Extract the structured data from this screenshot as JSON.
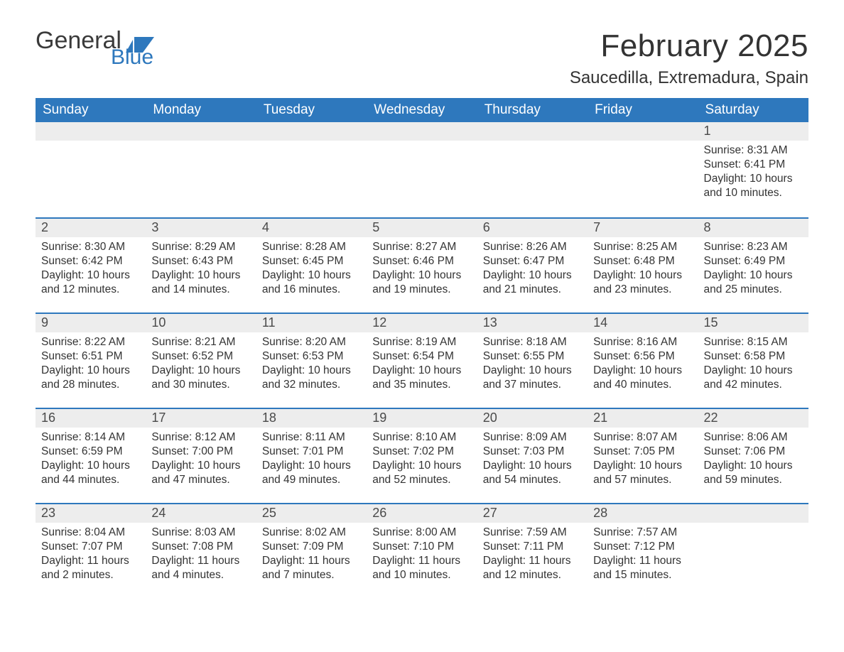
{
  "brand": {
    "word1": "General",
    "word2": "Blue",
    "accent_color": "#2e78bd",
    "text_color": "#3a3a3a"
  },
  "header": {
    "month_title": "February 2025",
    "location": "Saucedilla, Extremadura, Spain"
  },
  "calendar": {
    "header_bg": "#2e78bd",
    "header_text_color": "#ffffff",
    "daynum_bg": "#ededed",
    "row_divider_color": "#2e78bd",
    "days_of_week": [
      "Sunday",
      "Monday",
      "Tuesday",
      "Wednesday",
      "Thursday",
      "Friday",
      "Saturday"
    ],
    "weeks": [
      [
        null,
        null,
        null,
        null,
        null,
        null,
        {
          "n": "1",
          "sunrise": "Sunrise: 8:31 AM",
          "sunset": "Sunset: 6:41 PM",
          "day1": "Daylight: 10 hours",
          "day2": "and 10 minutes."
        }
      ],
      [
        {
          "n": "2",
          "sunrise": "Sunrise: 8:30 AM",
          "sunset": "Sunset: 6:42 PM",
          "day1": "Daylight: 10 hours",
          "day2": "and 12 minutes."
        },
        {
          "n": "3",
          "sunrise": "Sunrise: 8:29 AM",
          "sunset": "Sunset: 6:43 PM",
          "day1": "Daylight: 10 hours",
          "day2": "and 14 minutes."
        },
        {
          "n": "4",
          "sunrise": "Sunrise: 8:28 AM",
          "sunset": "Sunset: 6:45 PM",
          "day1": "Daylight: 10 hours",
          "day2": "and 16 minutes."
        },
        {
          "n": "5",
          "sunrise": "Sunrise: 8:27 AM",
          "sunset": "Sunset: 6:46 PM",
          "day1": "Daylight: 10 hours",
          "day2": "and 19 minutes."
        },
        {
          "n": "6",
          "sunrise": "Sunrise: 8:26 AM",
          "sunset": "Sunset: 6:47 PM",
          "day1": "Daylight: 10 hours",
          "day2": "and 21 minutes."
        },
        {
          "n": "7",
          "sunrise": "Sunrise: 8:25 AM",
          "sunset": "Sunset: 6:48 PM",
          "day1": "Daylight: 10 hours",
          "day2": "and 23 minutes."
        },
        {
          "n": "8",
          "sunrise": "Sunrise: 8:23 AM",
          "sunset": "Sunset: 6:49 PM",
          "day1": "Daylight: 10 hours",
          "day2": "and 25 minutes."
        }
      ],
      [
        {
          "n": "9",
          "sunrise": "Sunrise: 8:22 AM",
          "sunset": "Sunset: 6:51 PM",
          "day1": "Daylight: 10 hours",
          "day2": "and 28 minutes."
        },
        {
          "n": "10",
          "sunrise": "Sunrise: 8:21 AM",
          "sunset": "Sunset: 6:52 PM",
          "day1": "Daylight: 10 hours",
          "day2": "and 30 minutes."
        },
        {
          "n": "11",
          "sunrise": "Sunrise: 8:20 AM",
          "sunset": "Sunset: 6:53 PM",
          "day1": "Daylight: 10 hours",
          "day2": "and 32 minutes."
        },
        {
          "n": "12",
          "sunrise": "Sunrise: 8:19 AM",
          "sunset": "Sunset: 6:54 PM",
          "day1": "Daylight: 10 hours",
          "day2": "and 35 minutes."
        },
        {
          "n": "13",
          "sunrise": "Sunrise: 8:18 AM",
          "sunset": "Sunset: 6:55 PM",
          "day1": "Daylight: 10 hours",
          "day2": "and 37 minutes."
        },
        {
          "n": "14",
          "sunrise": "Sunrise: 8:16 AM",
          "sunset": "Sunset: 6:56 PM",
          "day1": "Daylight: 10 hours",
          "day2": "and 40 minutes."
        },
        {
          "n": "15",
          "sunrise": "Sunrise: 8:15 AM",
          "sunset": "Sunset: 6:58 PM",
          "day1": "Daylight: 10 hours",
          "day2": "and 42 minutes."
        }
      ],
      [
        {
          "n": "16",
          "sunrise": "Sunrise: 8:14 AM",
          "sunset": "Sunset: 6:59 PM",
          "day1": "Daylight: 10 hours",
          "day2": "and 44 minutes."
        },
        {
          "n": "17",
          "sunrise": "Sunrise: 8:12 AM",
          "sunset": "Sunset: 7:00 PM",
          "day1": "Daylight: 10 hours",
          "day2": "and 47 minutes."
        },
        {
          "n": "18",
          "sunrise": "Sunrise: 8:11 AM",
          "sunset": "Sunset: 7:01 PM",
          "day1": "Daylight: 10 hours",
          "day2": "and 49 minutes."
        },
        {
          "n": "19",
          "sunrise": "Sunrise: 8:10 AM",
          "sunset": "Sunset: 7:02 PM",
          "day1": "Daylight: 10 hours",
          "day2": "and 52 minutes."
        },
        {
          "n": "20",
          "sunrise": "Sunrise: 8:09 AM",
          "sunset": "Sunset: 7:03 PM",
          "day1": "Daylight: 10 hours",
          "day2": "and 54 minutes."
        },
        {
          "n": "21",
          "sunrise": "Sunrise: 8:07 AM",
          "sunset": "Sunset: 7:05 PM",
          "day1": "Daylight: 10 hours",
          "day2": "and 57 minutes."
        },
        {
          "n": "22",
          "sunrise": "Sunrise: 8:06 AM",
          "sunset": "Sunset: 7:06 PM",
          "day1": "Daylight: 10 hours",
          "day2": "and 59 minutes."
        }
      ],
      [
        {
          "n": "23",
          "sunrise": "Sunrise: 8:04 AM",
          "sunset": "Sunset: 7:07 PM",
          "day1": "Daylight: 11 hours",
          "day2": "and 2 minutes."
        },
        {
          "n": "24",
          "sunrise": "Sunrise: 8:03 AM",
          "sunset": "Sunset: 7:08 PM",
          "day1": "Daylight: 11 hours",
          "day2": "and 4 minutes."
        },
        {
          "n": "25",
          "sunrise": "Sunrise: 8:02 AM",
          "sunset": "Sunset: 7:09 PM",
          "day1": "Daylight: 11 hours",
          "day2": "and 7 minutes."
        },
        {
          "n": "26",
          "sunrise": "Sunrise: 8:00 AM",
          "sunset": "Sunset: 7:10 PM",
          "day1": "Daylight: 11 hours",
          "day2": "and 10 minutes."
        },
        {
          "n": "27",
          "sunrise": "Sunrise: 7:59 AM",
          "sunset": "Sunset: 7:11 PM",
          "day1": "Daylight: 11 hours",
          "day2": "and 12 minutes."
        },
        {
          "n": "28",
          "sunrise": "Sunrise: 7:57 AM",
          "sunset": "Sunset: 7:12 PM",
          "day1": "Daylight: 11 hours",
          "day2": "and 15 minutes."
        },
        null
      ]
    ]
  }
}
